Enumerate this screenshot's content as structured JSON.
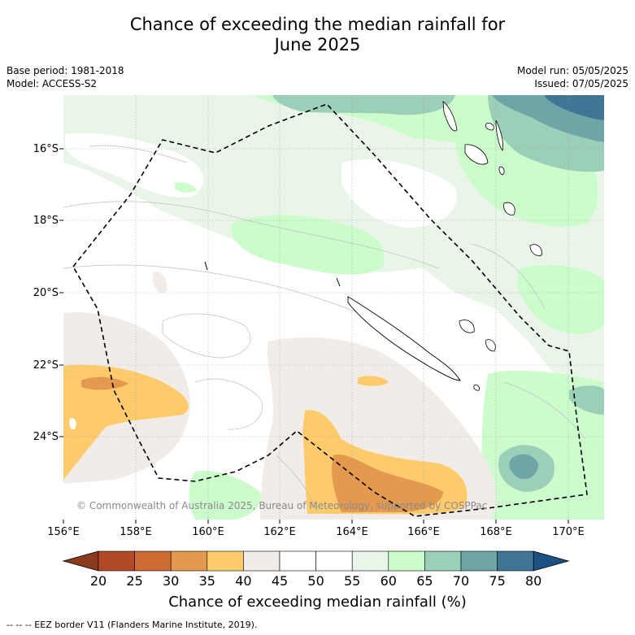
{
  "title_line1": "Chance of exceeding the median rainfall for",
  "title_line2": "June 2025",
  "meta": {
    "base_period": "Base period: 1981-2018",
    "model": "Model: ACCESS-S2",
    "model_run": "Model run: 05/05/2025",
    "issued": "Issued: 07/05/2025"
  },
  "map": {
    "lat_labels": [
      "16°S",
      "18°S",
      "20°S",
      "22°S",
      "24°S"
    ],
    "lon_labels": [
      "156°E",
      "158°E",
      "160°E",
      "162°E",
      "164°E",
      "166°E",
      "168°E",
      "170°E"
    ],
    "copyright": "© Commonwealth of Australia 2025, Bureau of Meteorology, supported by COSPPac"
  },
  "colorbar": {
    "ticks": [
      "20",
      "25",
      "30",
      "35",
      "40",
      "45",
      "50",
      "55",
      "60",
      "65",
      "70",
      "75",
      "80"
    ],
    "colors": [
      "#b34a26",
      "#cf6b34",
      "#e39a4e",
      "#fdcb6c",
      "#f2ece8",
      "#ffffff",
      "#ffffff",
      "#eaf5ea",
      "#ccfccc",
      "#9ccfb8",
      "#6ea6a8",
      "#3f7595"
    ],
    "low_color": "#8c3a1e",
    "high_color": "#1a5284",
    "label": "Chance of exceeding median rainfall (%)"
  },
  "footnote": "--  --  -- EEZ border V11 (Flanders Marine Institute, 2019)."
}
